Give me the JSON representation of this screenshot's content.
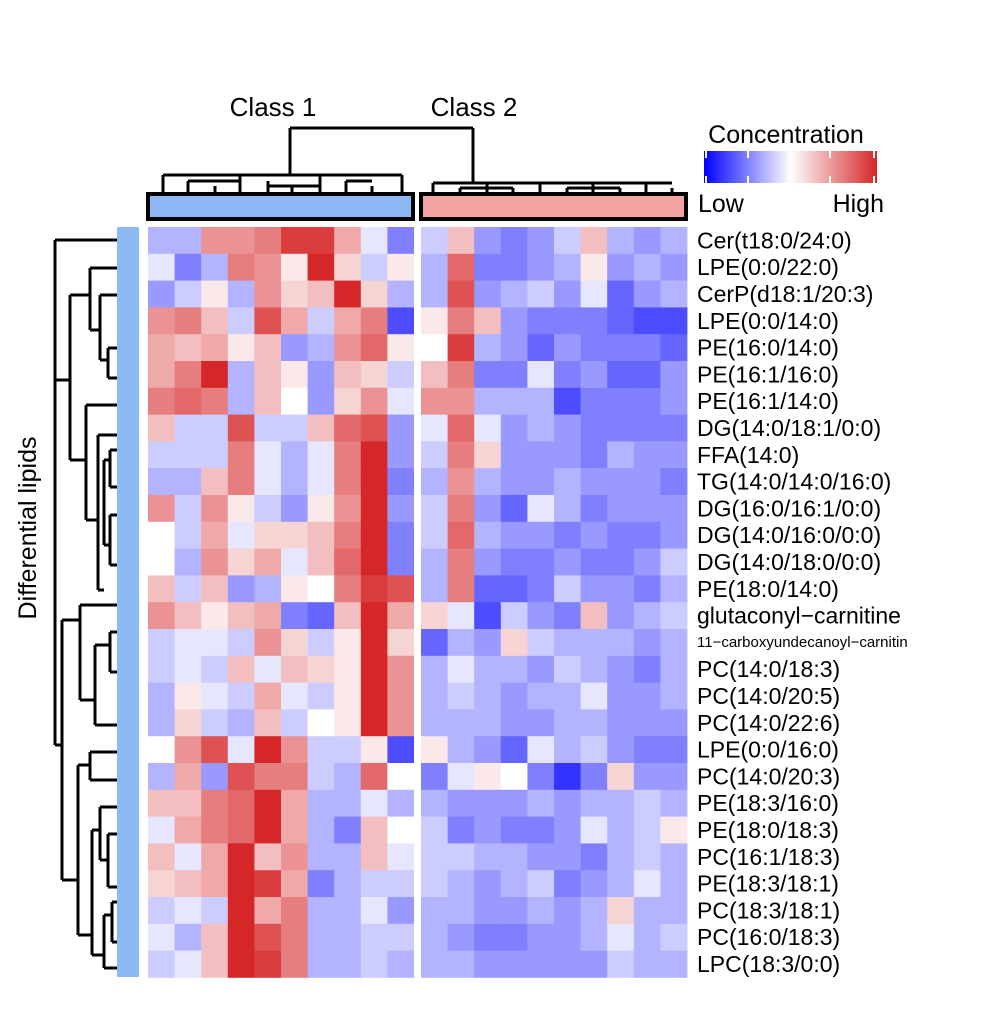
{
  "chart_data": {
    "type": "heatmap",
    "column_groups": [
      {
        "label": "Class 1",
        "color": "#8db8f4",
        "count": 10
      },
      {
        "label": "Class 2",
        "color": "#f4a3a3",
        "count": 10
      }
    ],
    "row_axis_label": "Differential lipids",
    "row_bar_color": "#8db8f4",
    "legend": {
      "title": "Concentration",
      "low_label": "Low",
      "high_label": "High",
      "colors": [
        "#0000ff",
        "#ffffff",
        "#d62728"
      ]
    },
    "rows": [
      "Cer(t18:0/24:0)",
      "LPE(0:0/22:0)",
      "CerP(d18:1/20:3)",
      "LPE(0:0/14:0)",
      "PE(16:0/14:0)",
      "PE(16:1/16:0)",
      "PE(16:1/14:0)",
      "DG(14:0/18:1/0:0)",
      "FFA(14:0)",
      "TG(14:0/14:0/16:0)",
      "DG(16:0/16:1/0:0)",
      "DG(14:0/16:0/0:0)",
      "DG(14:0/18:0/0:0)",
      "PE(18:0/14:0)",
      "glutaconyl−carnitine",
      "11−carboxyundecanoyl−carnitin",
      "PC(14:0/18:3)",
      "PC(14:0/20:5)",
      "PC(14:0/22:6)",
      "LPE(0:0/16:0)",
      "PC(14:0/20:3)",
      "PE(18:3/16:0)",
      "PE(18:0/18:3)",
      "PC(16:1/18:3)",
      "PE(18:3/18:1)",
      "PC(18:3/18:1)",
      "PC(16:0/18:3)",
      "LPC(18:3/0:0)"
    ],
    "values": [
      [
        -0.3,
        -0.3,
        0.5,
        0.5,
        0.6,
        0.9,
        0.9,
        0.4,
        -0.1,
        -0.5,
        -0.2,
        0.3,
        -0.4,
        -0.5,
        -0.4,
        -0.2,
        0.3,
        -0.3,
        -0.4,
        -0.3
      ],
      [
        -0.1,
        -0.5,
        -0.3,
        0.6,
        0.5,
        0.1,
        1.0,
        0.2,
        -0.2,
        0.1,
        -0.3,
        0.7,
        -0.5,
        -0.5,
        -0.4,
        -0.3,
        0.1,
        -0.4,
        -0.3,
        -0.4
      ],
      [
        -0.4,
        -0.2,
        0.1,
        -0.3,
        0.5,
        0.2,
        0.3,
        1.0,
        0.2,
        -0.3,
        -0.3,
        0.8,
        -0.4,
        -0.3,
        -0.2,
        -0.4,
        -0.1,
        -0.6,
        -0.4,
        -0.3
      ],
      [
        0.5,
        0.6,
        0.3,
        -0.2,
        0.8,
        0.4,
        -0.2,
        0.4,
        0.6,
        -0.7,
        0.1,
        0.6,
        0.3,
        -0.4,
        -0.5,
        -0.5,
        -0.5,
        -0.6,
        -0.7,
        -0.7
      ],
      [
        0.4,
        0.3,
        0.4,
        0.1,
        0.3,
        -0.4,
        -0.3,
        0.5,
        0.7,
        0.1,
        0.0,
        0.9,
        -0.3,
        -0.4,
        -0.6,
        -0.4,
        -0.5,
        -0.5,
        -0.5,
        -0.6
      ],
      [
        0.4,
        0.6,
        1.0,
        -0.3,
        0.3,
        0.1,
        -0.4,
        0.3,
        0.2,
        -0.2,
        0.3,
        0.6,
        -0.5,
        -0.5,
        -0.1,
        -0.5,
        -0.4,
        -0.6,
        -0.6,
        -0.4
      ],
      [
        0.6,
        0.7,
        0.6,
        -0.3,
        0.3,
        0.0,
        -0.4,
        0.2,
        0.5,
        -0.1,
        0.5,
        0.5,
        -0.3,
        -0.3,
        -0.3,
        -0.7,
        -0.5,
        -0.5,
        -0.5,
        -0.4
      ],
      [
        0.3,
        -0.2,
        -0.2,
        0.8,
        -0.2,
        -0.2,
        0.3,
        0.7,
        0.8,
        -0.4,
        -0.1,
        0.7,
        -0.1,
        -0.4,
        -0.3,
        -0.4,
        -0.5,
        -0.5,
        -0.5,
        -0.5
      ],
      [
        -0.2,
        -0.2,
        -0.2,
        0.6,
        -0.1,
        -0.3,
        -0.1,
        0.6,
        1.0,
        -0.4,
        -0.2,
        0.6,
        0.2,
        -0.4,
        -0.4,
        -0.4,
        -0.5,
        -0.3,
        -0.4,
        -0.4
      ],
      [
        -0.3,
        -0.3,
        0.3,
        0.6,
        -0.1,
        -0.3,
        -0.1,
        0.6,
        1.0,
        -0.5,
        -0.3,
        0.5,
        -0.3,
        -0.4,
        -0.4,
        -0.3,
        -0.4,
        -0.4,
        -0.4,
        -0.5
      ],
      [
        0.5,
        -0.2,
        0.5,
        0.1,
        -0.2,
        -0.4,
        0.1,
        0.5,
        1.0,
        -0.4,
        -0.2,
        0.6,
        -0.4,
        -0.6,
        -0.1,
        -0.3,
        -0.5,
        -0.4,
        -0.4,
        -0.4
      ],
      [
        0.0,
        -0.2,
        0.4,
        -0.1,
        0.2,
        0.2,
        0.3,
        0.6,
        1.0,
        -0.5,
        -0.2,
        0.7,
        -0.3,
        -0.4,
        -0.4,
        -0.5,
        -0.4,
        -0.5,
        -0.5,
        -0.4
      ],
      [
        0.0,
        -0.3,
        0.5,
        0.2,
        0.4,
        -0.1,
        0.3,
        0.7,
        1.0,
        -0.5,
        -0.3,
        0.6,
        -0.4,
        -0.5,
        -0.5,
        -0.4,
        -0.5,
        -0.5,
        -0.4,
        -0.2
      ],
      [
        0.3,
        -0.2,
        0.3,
        -0.4,
        -0.3,
        0.1,
        0.0,
        0.6,
        0.9,
        0.8,
        -0.3,
        0.6,
        -0.6,
        -0.6,
        -0.5,
        -0.2,
        -0.4,
        -0.4,
        -0.5,
        -0.3
      ],
      [
        0.5,
        0.3,
        0.1,
        0.3,
        0.4,
        -0.5,
        -0.6,
        0.3,
        1.0,
        0.4,
        0.2,
        -0.1,
        -0.7,
        -0.2,
        -0.4,
        -0.5,
        0.3,
        -0.4,
        -0.3,
        -0.2
      ],
      [
        -0.2,
        -0.1,
        -0.1,
        -0.2,
        0.5,
        0.2,
        -0.2,
        0.1,
        1.0,
        0.2,
        -0.6,
        -0.3,
        -0.4,
        0.2,
        -0.2,
        -0.3,
        -0.3,
        -0.3,
        -0.4,
        -0.3
      ],
      [
        -0.2,
        -0.1,
        -0.2,
        0.3,
        -0.1,
        0.3,
        0.2,
        0.1,
        1.0,
        0.5,
        -0.3,
        -0.1,
        -0.3,
        -0.3,
        -0.4,
        -0.2,
        -0.3,
        -0.4,
        -0.5,
        -0.3
      ],
      [
        -0.3,
        0.1,
        -0.1,
        -0.2,
        0.4,
        -0.1,
        -0.2,
        0.1,
        1.0,
        0.5,
        -0.3,
        -0.2,
        -0.3,
        -0.4,
        -0.3,
        -0.3,
        -0.1,
        -0.4,
        -0.4,
        -0.3
      ],
      [
        -0.3,
        0.2,
        -0.2,
        -0.3,
        0.3,
        -0.2,
        0.0,
        0.1,
        1.0,
        0.5,
        -0.3,
        -0.3,
        -0.3,
        -0.4,
        -0.4,
        -0.3,
        -0.3,
        -0.4,
        -0.4,
        -0.4
      ],
      [
        0.0,
        0.5,
        0.8,
        -0.1,
        1.0,
        0.5,
        -0.2,
        -0.2,
        0.1,
        -0.7,
        0.1,
        -0.3,
        -0.4,
        -0.6,
        -0.1,
        -0.3,
        -0.2,
        -0.4,
        -0.5,
        -0.5
      ],
      [
        -0.3,
        0.4,
        -0.4,
        0.8,
        0.6,
        0.6,
        -0.2,
        -0.3,
        0.7,
        0.0,
        -0.5,
        -0.1,
        0.1,
        0.0,
        -0.5,
        -0.8,
        -0.5,
        0.2,
        -0.4,
        -0.4
      ],
      [
        0.3,
        0.3,
        0.6,
        0.7,
        1.0,
        0.4,
        -0.3,
        -0.3,
        -0.1,
        -0.3,
        -0.3,
        -0.4,
        -0.4,
        -0.4,
        -0.3,
        -0.4,
        -0.3,
        -0.3,
        -0.2,
        -0.3
      ],
      [
        -0.1,
        0.4,
        0.6,
        0.7,
        1.0,
        0.4,
        -0.3,
        -0.5,
        0.3,
        0.0,
        -0.2,
        -0.5,
        -0.4,
        -0.5,
        -0.5,
        -0.4,
        -0.1,
        -0.3,
        -0.2,
        0.1
      ],
      [
        0.3,
        -0.1,
        0.4,
        1.0,
        0.3,
        0.5,
        -0.3,
        -0.3,
        0.3,
        -0.1,
        -0.2,
        -0.2,
        -0.3,
        -0.3,
        -0.4,
        -0.4,
        -0.5,
        -0.3,
        -0.2,
        -0.3
      ],
      [
        0.2,
        0.3,
        0.4,
        1.0,
        0.9,
        0.4,
        -0.5,
        -0.3,
        -0.2,
        -0.2,
        -0.2,
        -0.3,
        -0.4,
        -0.3,
        -0.2,
        -0.5,
        -0.4,
        -0.3,
        -0.1,
        -0.3
      ],
      [
        -0.2,
        -0.1,
        -0.2,
        1.0,
        0.4,
        0.6,
        -0.3,
        -0.3,
        -0.1,
        -0.4,
        -0.3,
        -0.3,
        -0.4,
        -0.4,
        -0.3,
        -0.4,
        -0.3,
        0.2,
        -0.3,
        -0.3
      ],
      [
        -0.1,
        -0.3,
        0.3,
        1.0,
        0.8,
        0.6,
        -0.3,
        -0.3,
        -0.2,
        -0.2,
        -0.3,
        -0.4,
        -0.5,
        -0.5,
        -0.4,
        -0.4,
        -0.3,
        -0.1,
        -0.3,
        -0.2
      ],
      [
        -0.2,
        -0.1,
        0.3,
        1.0,
        0.9,
        0.6,
        -0.3,
        -0.3,
        -0.2,
        -0.3,
        -0.3,
        -0.3,
        -0.4,
        -0.4,
        -0.4,
        -0.4,
        -0.4,
        -0.2,
        -0.3,
        -0.3
      ]
    ]
  }
}
